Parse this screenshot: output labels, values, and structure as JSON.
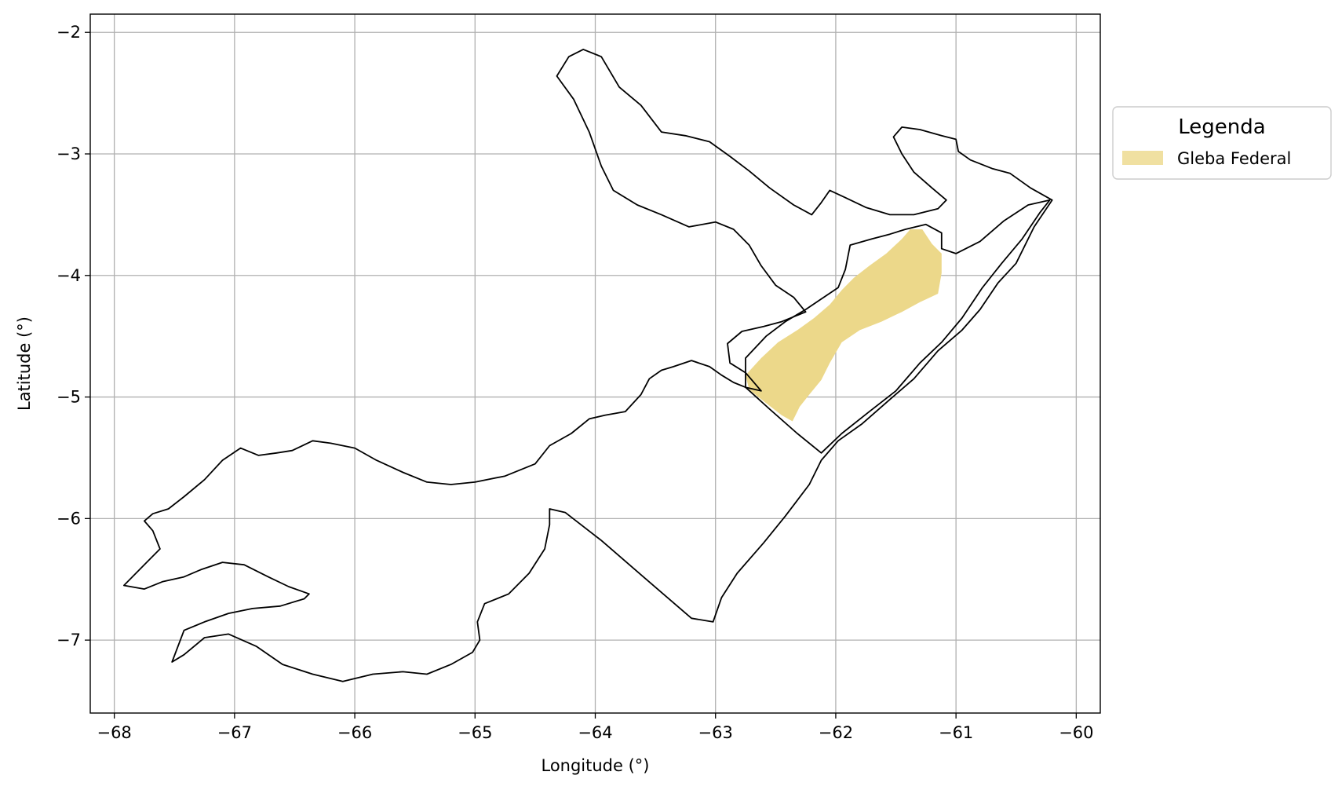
{
  "chart_data": {
    "type": "map",
    "xlabel": "Longitude (°)",
    "ylabel": "Latitude (°)",
    "xlim": [
      -68.2,
      -59.8
    ],
    "ylim": [
      -7.6,
      -1.85
    ],
    "xticks": [
      -68,
      -67,
      -66,
      -65,
      -64,
      -63,
      -62,
      -61,
      -60
    ],
    "yticks": [
      -2,
      -3,
      -4,
      -5,
      -6,
      -7
    ],
    "grid": true,
    "legend": {
      "title": "Legenda",
      "placement": "outside-right-top",
      "entries": [
        {
          "label": "Gleba Federal",
          "color": "#ecd88a"
        }
      ]
    },
    "layers": [
      {
        "name": "Gleba Federal",
        "kind": "fill",
        "color": "#ecd88a",
        "coords": [
          [
            -62.75,
            -4.82
          ],
          [
            -62.62,
            -4.68
          ],
          [
            -62.48,
            -4.55
          ],
          [
            -62.32,
            -4.45
          ],
          [
            -62.18,
            -4.35
          ],
          [
            -62.05,
            -4.24
          ],
          [
            -61.95,
            -4.12
          ],
          [
            -61.85,
            -4.02
          ],
          [
            -61.72,
            -3.92
          ],
          [
            -61.58,
            -3.82
          ],
          [
            -61.45,
            -3.7
          ],
          [
            -61.38,
            -3.62
          ],
          [
            -61.28,
            -3.62
          ],
          [
            -61.2,
            -3.74
          ],
          [
            -61.12,
            -3.82
          ],
          [
            -61.12,
            -3.98
          ],
          [
            -61.15,
            -4.15
          ],
          [
            -61.3,
            -4.22
          ],
          [
            -61.45,
            -4.3
          ],
          [
            -61.62,
            -4.38
          ],
          [
            -61.8,
            -4.45
          ],
          [
            -61.95,
            -4.55
          ],
          [
            -62.05,
            -4.72
          ],
          [
            -62.12,
            -4.86
          ],
          [
            -62.22,
            -4.98
          ],
          [
            -62.3,
            -5.08
          ],
          [
            -62.36,
            -5.2
          ],
          [
            -62.45,
            -5.15
          ],
          [
            -62.58,
            -5.05
          ],
          [
            -62.72,
            -4.94
          ]
        ]
      },
      {
        "name": "Outline west",
        "kind": "line",
        "color": "#000000",
        "coords": [
          [
            -62.62,
            -4.95
          ],
          [
            -62.75,
            -4.92
          ],
          [
            -62.85,
            -4.88
          ],
          [
            -62.95,
            -4.82
          ],
          [
            -63.05,
            -4.75
          ],
          [
            -63.2,
            -4.7
          ],
          [
            -63.35,
            -4.75
          ],
          [
            -63.45,
            -4.78
          ],
          [
            -63.55,
            -4.85
          ],
          [
            -63.62,
            -4.98
          ],
          [
            -63.75,
            -5.12
          ],
          [
            -63.92,
            -5.15
          ],
          [
            -64.05,
            -5.18
          ],
          [
            -64.2,
            -5.3
          ],
          [
            -64.38,
            -5.4
          ],
          [
            -64.5,
            -5.55
          ],
          [
            -64.75,
            -5.65
          ],
          [
            -65.0,
            -5.7
          ],
          [
            -65.2,
            -5.72
          ],
          [
            -65.4,
            -5.7
          ],
          [
            -65.6,
            -5.62
          ],
          [
            -65.82,
            -5.52
          ],
          [
            -66.0,
            -5.42
          ],
          [
            -66.2,
            -5.38
          ],
          [
            -66.35,
            -5.36
          ],
          [
            -66.52,
            -5.44
          ],
          [
            -66.65,
            -5.46
          ],
          [
            -66.8,
            -5.48
          ],
          [
            -66.95,
            -5.42
          ],
          [
            -67.1,
            -5.52
          ],
          [
            -67.25,
            -5.68
          ],
          [
            -67.42,
            -5.82
          ],
          [
            -67.55,
            -5.92
          ],
          [
            -67.68,
            -5.96
          ],
          [
            -67.75,
            -6.02
          ],
          [
            -67.68,
            -6.1
          ],
          [
            -67.62,
            -6.25
          ],
          [
            -67.72,
            -6.35
          ],
          [
            -67.82,
            -6.45
          ],
          [
            -67.92,
            -6.55
          ],
          [
            -67.75,
            -6.58
          ],
          [
            -67.6,
            -6.52
          ],
          [
            -67.42,
            -6.48
          ],
          [
            -67.28,
            -6.42
          ],
          [
            -67.1,
            -6.36
          ],
          [
            -66.92,
            -6.38
          ],
          [
            -66.72,
            -6.48
          ],
          [
            -66.55,
            -6.56
          ],
          [
            -66.38,
            -6.62
          ],
          [
            -66.42,
            -6.66
          ],
          [
            -66.62,
            -6.72
          ],
          [
            -66.85,
            -6.74
          ],
          [
            -67.05,
            -6.78
          ],
          [
            -67.25,
            -6.85
          ],
          [
            -67.42,
            -6.92
          ],
          [
            -67.52,
            -7.18
          ],
          [
            -67.42,
            -7.12
          ],
          [
            -67.25,
            -6.98
          ],
          [
            -67.05,
            -6.95
          ],
          [
            -66.82,
            -7.05
          ],
          [
            -66.6,
            -7.2
          ],
          [
            -66.35,
            -7.28
          ],
          [
            -66.1,
            -7.34
          ],
          [
            -65.85,
            -7.28
          ],
          [
            -65.6,
            -7.26
          ],
          [
            -65.4,
            -7.28
          ],
          [
            -65.2,
            -7.2
          ],
          [
            -65.02,
            -7.1
          ],
          [
            -64.96,
            -7.0
          ],
          [
            -64.98,
            -6.85
          ],
          [
            -64.92,
            -6.7
          ],
          [
            -64.72,
            -6.62
          ],
          [
            -64.55,
            -6.45
          ],
          [
            -64.42,
            -6.25
          ],
          [
            -64.38,
            -6.05
          ],
          [
            -64.38,
            -5.92
          ],
          [
            -64.25,
            -5.95
          ],
          [
            -63.95,
            -6.18
          ],
          [
            -63.6,
            -6.48
          ],
          [
            -63.2,
            -6.82
          ],
          [
            -63.02,
            -6.85
          ],
          [
            -62.95,
            -6.65
          ],
          [
            -62.82,
            -6.45
          ],
          [
            -62.6,
            -6.2
          ],
          [
            -62.42,
            -5.98
          ],
          [
            -62.22,
            -5.72
          ],
          [
            -62.12,
            -5.52
          ],
          [
            -61.98,
            -5.36
          ],
          [
            -61.78,
            -5.22
          ],
          [
            -61.55,
            -5.02
          ],
          [
            -61.35,
            -4.85
          ],
          [
            -61.15,
            -4.62
          ],
          [
            -60.95,
            -4.45
          ],
          [
            -60.8,
            -4.28
          ],
          [
            -60.65,
            -4.06
          ],
          [
            -60.5,
            -3.9
          ],
          [
            -60.35,
            -3.6
          ],
          [
            -60.2,
            -3.38
          ],
          [
            -60.38,
            -3.28
          ],
          [
            -60.55,
            -3.16
          ],
          [
            -60.7,
            -3.12
          ],
          [
            -60.88,
            -3.05
          ],
          [
            -60.98,
            -2.98
          ],
          [
            -61.0,
            -2.88
          ],
          [
            -61.12,
            -2.85
          ],
          [
            -61.3,
            -2.8
          ],
          [
            -61.45,
            -2.78
          ],
          [
            -61.52,
            -2.86
          ],
          [
            -61.45,
            -3.0
          ],
          [
            -61.35,
            -3.15
          ],
          [
            -61.2,
            -3.28
          ],
          [
            -61.08,
            -3.38
          ],
          [
            -61.15,
            -3.45
          ],
          [
            -61.35,
            -3.5
          ],
          [
            -61.55,
            -3.5
          ],
          [
            -61.75,
            -3.44
          ],
          [
            -61.92,
            -3.36
          ],
          [
            -62.05,
            -3.3
          ],
          [
            -62.12,
            -3.4
          ],
          [
            -62.2,
            -3.5
          ],
          [
            -62.35,
            -3.42
          ],
          [
            -62.55,
            -3.28
          ],
          [
            -62.72,
            -3.14
          ],
          [
            -62.88,
            -3.02
          ],
          [
            -63.05,
            -2.9
          ],
          [
            -63.25,
            -2.85
          ],
          [
            -63.45,
            -2.82
          ],
          [
            -63.62,
            -2.6
          ],
          [
            -63.8,
            -2.45
          ],
          [
            -63.95,
            -2.2
          ],
          [
            -64.1,
            -2.14
          ],
          [
            -64.22,
            -2.2
          ],
          [
            -64.32,
            -2.36
          ],
          [
            -64.18,
            -2.55
          ],
          [
            -64.05,
            -2.82
          ],
          [
            -63.95,
            -3.1
          ],
          [
            -63.85,
            -3.3
          ],
          [
            -63.65,
            -3.42
          ],
          [
            -63.45,
            -3.5
          ],
          [
            -63.22,
            -3.6
          ],
          [
            -63.0,
            -3.56
          ],
          [
            -62.85,
            -3.62
          ],
          [
            -62.72,
            -3.75
          ],
          [
            -62.62,
            -3.92
          ],
          [
            -62.5,
            -4.08
          ],
          [
            -62.35,
            -4.18
          ],
          [
            -62.25,
            -4.3
          ],
          [
            -62.45,
            -4.38
          ],
          [
            -62.6,
            -4.42
          ],
          [
            -62.78,
            -4.46
          ],
          [
            -62.9,
            -4.56
          ],
          [
            -62.88,
            -4.72
          ],
          [
            -62.75,
            -4.8
          ],
          [
            -62.62,
            -4.95
          ]
        ]
      },
      {
        "name": "Outline east",
        "kind": "line",
        "color": "#000000",
        "coords": [
          [
            -62.75,
            -4.92
          ],
          [
            -62.55,
            -5.1
          ],
          [
            -62.32,
            -5.3
          ],
          [
            -62.12,
            -5.46
          ],
          [
            -61.95,
            -5.3
          ],
          [
            -61.72,
            -5.12
          ],
          [
            -61.5,
            -4.95
          ],
          [
            -61.3,
            -4.72
          ],
          [
            -61.12,
            -4.55
          ],
          [
            -60.95,
            -4.35
          ],
          [
            -60.78,
            -4.1
          ],
          [
            -60.62,
            -3.9
          ],
          [
            -60.45,
            -3.7
          ],
          [
            -60.3,
            -3.48
          ],
          [
            -60.22,
            -3.38
          ],
          [
            -60.4,
            -3.42
          ],
          [
            -60.6,
            -3.55
          ],
          [
            -60.8,
            -3.72
          ],
          [
            -61.0,
            -3.82
          ],
          [
            -61.12,
            -3.78
          ],
          [
            -61.12,
            -3.65
          ],
          [
            -61.25,
            -3.58
          ],
          [
            -61.42,
            -3.62
          ],
          [
            -61.55,
            -3.66
          ],
          [
            -61.7,
            -3.7
          ],
          [
            -61.88,
            -3.75
          ],
          [
            -61.92,
            -3.95
          ],
          [
            -61.98,
            -4.1
          ],
          [
            -62.1,
            -4.18
          ],
          [
            -62.25,
            -4.28
          ],
          [
            -62.42,
            -4.38
          ],
          [
            -62.58,
            -4.5
          ],
          [
            -62.75,
            -4.68
          ],
          [
            -62.75,
            -4.92
          ]
        ]
      }
    ]
  }
}
